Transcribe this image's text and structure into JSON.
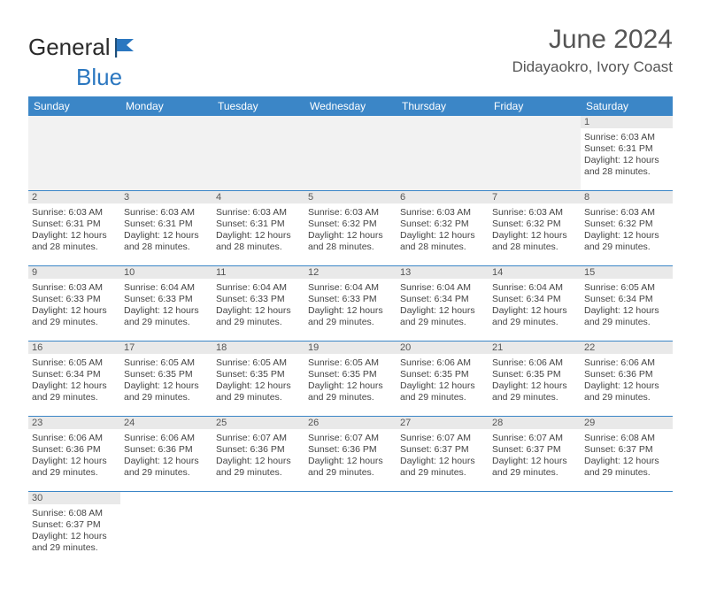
{
  "brand": {
    "part1": "General",
    "part2": "Blue"
  },
  "header": {
    "month_year": "June 2024",
    "location": "Didayaokro, Ivory Coast"
  },
  "colors": {
    "header_bg": "#3b86c7",
    "header_text": "#ffffff",
    "row_divider": "#3b86c7",
    "daynum_band": "#e9e9e9",
    "empty_cell": "#f2f2f2",
    "text": "#444444",
    "title": "#555555",
    "brand_blue": "#2b77c0"
  },
  "daysOfWeek": [
    "Sunday",
    "Monday",
    "Tuesday",
    "Wednesday",
    "Thursday",
    "Friday",
    "Saturday"
  ],
  "calendar": {
    "type": "table",
    "columns": 7,
    "lead_blanks": 6,
    "days": [
      {
        "n": 1,
        "sunrise": "6:03 AM",
        "sunset": "6:31 PM",
        "daylight": "12 hours and 28 minutes."
      },
      {
        "n": 2,
        "sunrise": "6:03 AM",
        "sunset": "6:31 PM",
        "daylight": "12 hours and 28 minutes."
      },
      {
        "n": 3,
        "sunrise": "6:03 AM",
        "sunset": "6:31 PM",
        "daylight": "12 hours and 28 minutes."
      },
      {
        "n": 4,
        "sunrise": "6:03 AM",
        "sunset": "6:31 PM",
        "daylight": "12 hours and 28 minutes."
      },
      {
        "n": 5,
        "sunrise": "6:03 AM",
        "sunset": "6:32 PM",
        "daylight": "12 hours and 28 minutes."
      },
      {
        "n": 6,
        "sunrise": "6:03 AM",
        "sunset": "6:32 PM",
        "daylight": "12 hours and 28 minutes."
      },
      {
        "n": 7,
        "sunrise": "6:03 AM",
        "sunset": "6:32 PM",
        "daylight": "12 hours and 28 minutes."
      },
      {
        "n": 8,
        "sunrise": "6:03 AM",
        "sunset": "6:32 PM",
        "daylight": "12 hours and 29 minutes."
      },
      {
        "n": 9,
        "sunrise": "6:03 AM",
        "sunset": "6:33 PM",
        "daylight": "12 hours and 29 minutes."
      },
      {
        "n": 10,
        "sunrise": "6:04 AM",
        "sunset": "6:33 PM",
        "daylight": "12 hours and 29 minutes."
      },
      {
        "n": 11,
        "sunrise": "6:04 AM",
        "sunset": "6:33 PM",
        "daylight": "12 hours and 29 minutes."
      },
      {
        "n": 12,
        "sunrise": "6:04 AM",
        "sunset": "6:33 PM",
        "daylight": "12 hours and 29 minutes."
      },
      {
        "n": 13,
        "sunrise": "6:04 AM",
        "sunset": "6:34 PM",
        "daylight": "12 hours and 29 minutes."
      },
      {
        "n": 14,
        "sunrise": "6:04 AM",
        "sunset": "6:34 PM",
        "daylight": "12 hours and 29 minutes."
      },
      {
        "n": 15,
        "sunrise": "6:05 AM",
        "sunset": "6:34 PM",
        "daylight": "12 hours and 29 minutes."
      },
      {
        "n": 16,
        "sunrise": "6:05 AM",
        "sunset": "6:34 PM",
        "daylight": "12 hours and 29 minutes."
      },
      {
        "n": 17,
        "sunrise": "6:05 AM",
        "sunset": "6:35 PM",
        "daylight": "12 hours and 29 minutes."
      },
      {
        "n": 18,
        "sunrise": "6:05 AM",
        "sunset": "6:35 PM",
        "daylight": "12 hours and 29 minutes."
      },
      {
        "n": 19,
        "sunrise": "6:05 AM",
        "sunset": "6:35 PM",
        "daylight": "12 hours and 29 minutes."
      },
      {
        "n": 20,
        "sunrise": "6:06 AM",
        "sunset": "6:35 PM",
        "daylight": "12 hours and 29 minutes."
      },
      {
        "n": 21,
        "sunrise": "6:06 AM",
        "sunset": "6:35 PM",
        "daylight": "12 hours and 29 minutes."
      },
      {
        "n": 22,
        "sunrise": "6:06 AM",
        "sunset": "6:36 PM",
        "daylight": "12 hours and 29 minutes."
      },
      {
        "n": 23,
        "sunrise": "6:06 AM",
        "sunset": "6:36 PM",
        "daylight": "12 hours and 29 minutes."
      },
      {
        "n": 24,
        "sunrise": "6:06 AM",
        "sunset": "6:36 PM",
        "daylight": "12 hours and 29 minutes."
      },
      {
        "n": 25,
        "sunrise": "6:07 AM",
        "sunset": "6:36 PM",
        "daylight": "12 hours and 29 minutes."
      },
      {
        "n": 26,
        "sunrise": "6:07 AM",
        "sunset": "6:36 PM",
        "daylight": "12 hours and 29 minutes."
      },
      {
        "n": 27,
        "sunrise": "6:07 AM",
        "sunset": "6:37 PM",
        "daylight": "12 hours and 29 minutes."
      },
      {
        "n": 28,
        "sunrise": "6:07 AM",
        "sunset": "6:37 PM",
        "daylight": "12 hours and 29 minutes."
      },
      {
        "n": 29,
        "sunrise": "6:08 AM",
        "sunset": "6:37 PM",
        "daylight": "12 hours and 29 minutes."
      },
      {
        "n": 30,
        "sunrise": "6:08 AM",
        "sunset": "6:37 PM",
        "daylight": "12 hours and 29 minutes."
      }
    ],
    "labels": {
      "sunrise": "Sunrise:",
      "sunset": "Sunset:",
      "daylight": "Daylight:"
    }
  },
  "typography": {
    "title_fontsize": 30,
    "location_fontsize": 17,
    "dayhead_fontsize": 12,
    "daynum_fontsize": 11,
    "info_fontsize": 10.5
  }
}
